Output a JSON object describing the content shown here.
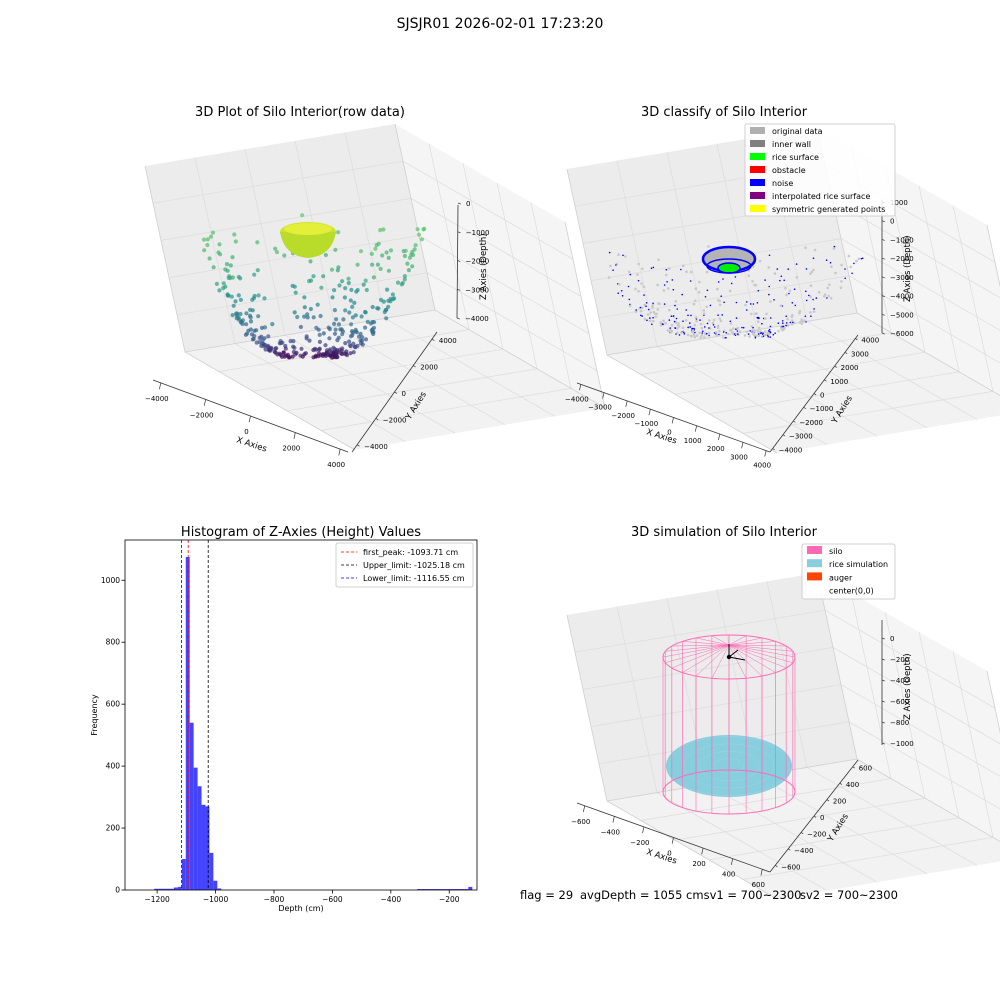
{
  "suptitle": "SJSJR01 2026-02-01 17:23:20",
  "status": {
    "flag": "flag = 29",
    "avg": "avgDepth = 1055 cmsv1 = 700~2300",
    "sv2": "sv2 = 700~2300"
  },
  "colors": {
    "hist_bar": "#4444ff",
    "first_peak": "#ff0000",
    "upper_limit": "#000000",
    "lower_limit": "#0000ff",
    "silo": "#ff69b4",
    "rice": "#87cedf",
    "auger": "#ff4500"
  },
  "chart_data": [
    {
      "type": "scatter",
      "title": "3D Plot of Silo Interior(row data)",
      "xlabel": "X Axies",
      "ylabel": "Y Axies",
      "zlabel": "Z Axies (Depth)",
      "x_ticks": [
        "−4000",
        "−2000",
        "0",
        "2000",
        "4000"
      ],
      "y_ticks": [
        "−4000",
        "−2000",
        "0",
        "2000",
        "4000"
      ],
      "z_ticks": [
        "0",
        "−1000",
        "−2000",
        "−3000",
        "−4000"
      ],
      "xlim": [
        -4500,
        4500
      ],
      "ylim": [
        -4500,
        4500
      ],
      "zlim": [
        -4500,
        0
      ],
      "colormap": "viridis"
    },
    {
      "type": "scatter",
      "title": "3D classify of Silo Interior",
      "xlabel": "X Axies",
      "ylabel": "Y Axies",
      "zlabel": "Z Axies (Depth)",
      "x_ticks": [
        "−4000",
        "−3000",
        "−2000",
        "−1000",
        "0",
        "1000",
        "2000",
        "3000",
        "4000"
      ],
      "y_ticks": [
        "−4000",
        "−3000",
        "−2000",
        "−1000",
        "0",
        "1000",
        "2000",
        "3000",
        "4000"
      ],
      "z_ticks": [
        "1000",
        "0",
        "−1000",
        "−2000",
        "−3000",
        "−4000",
        "−5000",
        "−6000"
      ],
      "legend": [
        {
          "label": "original data",
          "color": "#b0b0b0"
        },
        {
          "label": "inner wall",
          "color": "#808080"
        },
        {
          "label": "rice surface",
          "color": "#00ff00"
        },
        {
          "label": "obstacle",
          "color": "#ff0000"
        },
        {
          "label": "noise",
          "color": "#0000ff"
        },
        {
          "label": "interpolated rice surface",
          "color": "#800080"
        },
        {
          "label": "symmetric generated points",
          "color": "#ffff00"
        }
      ],
      "legend_position": "top-right"
    },
    {
      "type": "bar",
      "title": "Histogram of Z-Axies (Height) Values",
      "xlabel": "Depth (cm)",
      "ylabel": "Frequency",
      "xlim": [
        -1310,
        -105
      ],
      "ylim": [
        0,
        1130
      ],
      "x_ticks": [
        -1200,
        -1000,
        -800,
        -600,
        -400,
        -200
      ],
      "y_ticks": [
        0,
        200,
        400,
        600,
        800,
        1000
      ],
      "bin_width": 13.5,
      "bins": [
        {
          "start": -1210,
          "value": 4
        },
        {
          "start": -1196.5,
          "value": 4
        },
        {
          "start": -1183,
          "value": 4
        },
        {
          "start": -1169.5,
          "value": 4
        },
        {
          "start": -1156,
          "value": 4
        },
        {
          "start": -1142.5,
          "value": 8
        },
        {
          "start": -1129,
          "value": 10
        },
        {
          "start": -1115.5,
          "value": 100
        },
        {
          "start": -1102,
          "value": 1075
        },
        {
          "start": -1088.5,
          "value": 540
        },
        {
          "start": -1075,
          "value": 395
        },
        {
          "start": -1061.5,
          "value": 335
        },
        {
          "start": -1048,
          "value": 275
        },
        {
          "start": -1034.5,
          "value": 270
        },
        {
          "start": -1021,
          "value": 120
        },
        {
          "start": -1007.5,
          "value": 30
        },
        {
          "start": -994,
          "value": 5
        },
        {
          "start": -310,
          "value": 3
        },
        {
          "start": -296.5,
          "value": 3
        },
        {
          "start": -283,
          "value": 3
        },
        {
          "start": -269.5,
          "value": 3
        },
        {
          "start": -256,
          "value": 3
        },
        {
          "start": -242.5,
          "value": 3
        },
        {
          "start": -229,
          "value": 3
        },
        {
          "start": -215.5,
          "value": 3
        },
        {
          "start": -202,
          "value": 3
        },
        {
          "start": -188.5,
          "value": 3
        },
        {
          "start": -175,
          "value": 3
        },
        {
          "start": -161.5,
          "value": 3
        },
        {
          "start": -148,
          "value": 3
        },
        {
          "start": -134.5,
          "value": 10
        }
      ],
      "vlines": [
        {
          "label": "first_peak: -1093.71 cm",
          "x": -1093.71,
          "color": "#ff0000"
        },
        {
          "label": "Upper_limit: -1025.18 cm",
          "x": -1025.18,
          "color": "#000000"
        },
        {
          "label": "Lower_limit: -1116.55 cm",
          "x": -1116.55,
          "color": "#0000ff"
        }
      ],
      "legend_position": "top-right"
    },
    {
      "type": "scatter",
      "title": "3D simulation of Silo Interior",
      "xlabel": "X Axies",
      "ylabel": "Y Axies",
      "zlabel": "Z Axies (Depth)",
      "x_ticks": [
        "−600",
        "−400",
        "−200",
        "0",
        "200",
        "400",
        "600"
      ],
      "y_ticks": [
        "−600",
        "−400",
        "−200",
        "0",
        "200",
        "400",
        "600"
      ],
      "z_ticks": [
        "0",
        "−200",
        "−400",
        "−600",
        "−800",
        "−1000"
      ],
      "legend": [
        {
          "label": "silo",
          "color": "#ff69b4"
        },
        {
          "label": "rice simulation",
          "color": "#87cedf"
        },
        {
          "label": "auger",
          "color": "#ff4500"
        },
        {
          "label": "center(0,0)",
          "color": "#ffffff"
        }
      ],
      "legend_position": "top-right"
    }
  ]
}
